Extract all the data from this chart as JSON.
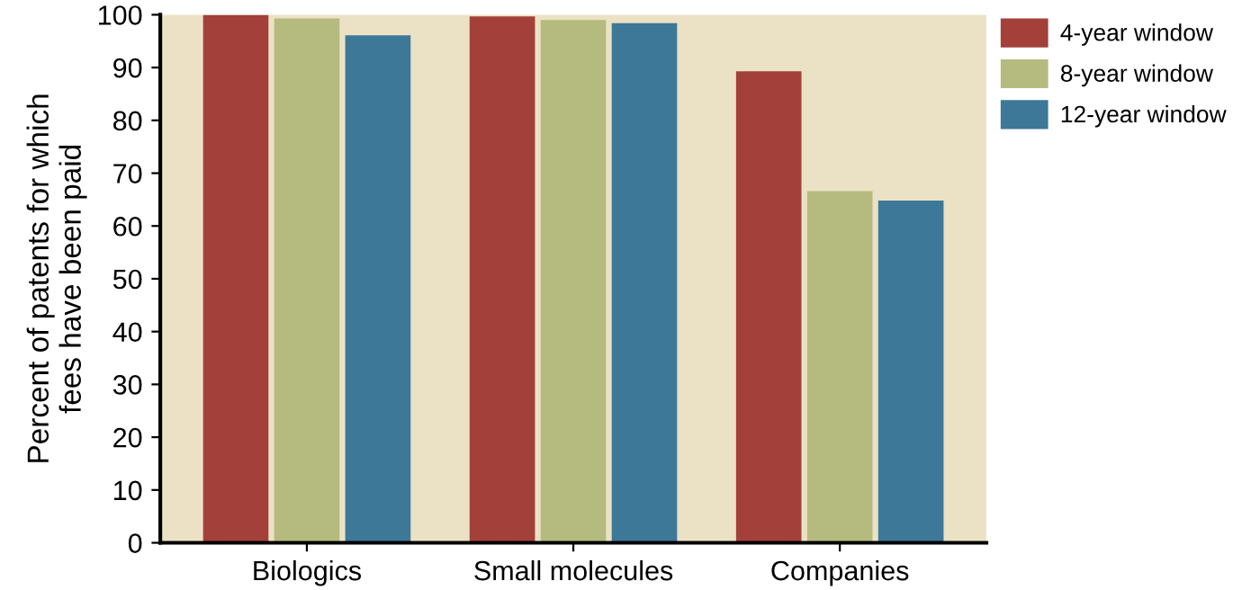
{
  "chart_data": {
    "type": "bar",
    "ylabel": "Percent of patents for which\nfees have been paid",
    "categories": [
      "Biologics",
      "Small molecules",
      "Companies"
    ],
    "series": [
      {
        "name": "4-year window",
        "color": "#a3403a",
        "values": [
          100,
          99.7,
          89.3
        ]
      },
      {
        "name": "8-year window",
        "color": "#b5bb7e",
        "values": [
          99.3,
          99,
          66.6
        ]
      },
      {
        "name": "12-year window",
        "color": "#3e7898",
        "values": [
          96.1,
          98.4,
          64.8
        ]
      }
    ],
    "ylim": [
      0,
      100
    ],
    "yticks": [
      0,
      10,
      20,
      30,
      40,
      50,
      60,
      70,
      80,
      90,
      100
    ],
    "legend": "top right",
    "grid": false
  }
}
